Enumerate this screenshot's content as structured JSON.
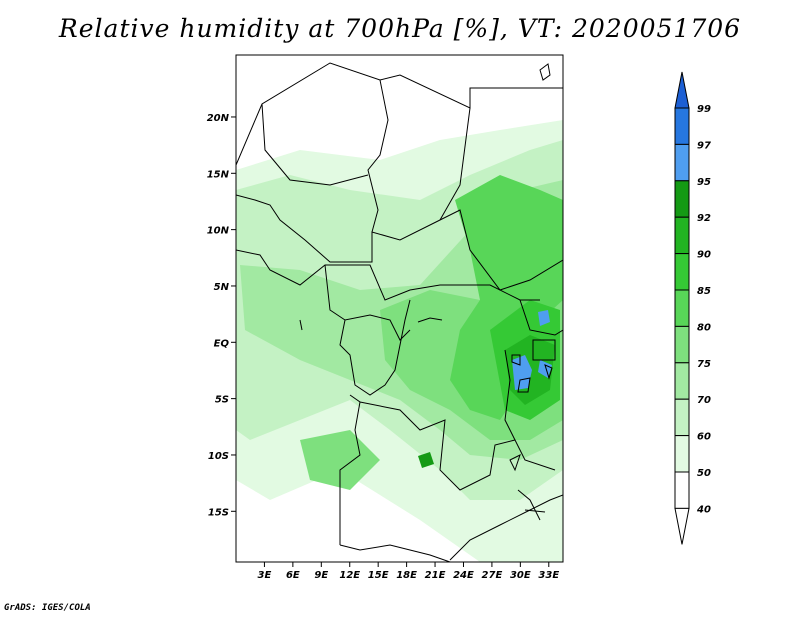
{
  "title": "Relative humidity at 700hPa [%], VT: 2020051706",
  "footer": "GrADS: IGES/COLA",
  "map": {
    "lat_labels": [
      "20N",
      "15N",
      "10N",
      "5N",
      "EQ",
      "5S",
      "10S",
      "15S"
    ],
    "lon_labels": [
      "3E",
      "6E",
      "9E",
      "12E",
      "15E",
      "18E",
      "21E",
      "24E",
      "27E",
      "30E",
      "33E"
    ],
    "lat_range": [
      -19.5,
      25.5
    ],
    "lon_range": [
      0,
      34.5
    ]
  },
  "colorbar": {
    "levels": [
      "99",
      "97",
      "95",
      "92",
      "90",
      "85",
      "80",
      "75",
      "70",
      "60",
      "50",
      "40"
    ],
    "colors": [
      "#1c5fd4",
      "#2677e0",
      "#4f9ef0",
      "#149a14",
      "#22b422",
      "#35c935",
      "#58d658",
      "#7ee07e",
      "#a2e9a2",
      "#c4f2c4",
      "#e2fae2",
      "#ffffff"
    ]
  }
}
